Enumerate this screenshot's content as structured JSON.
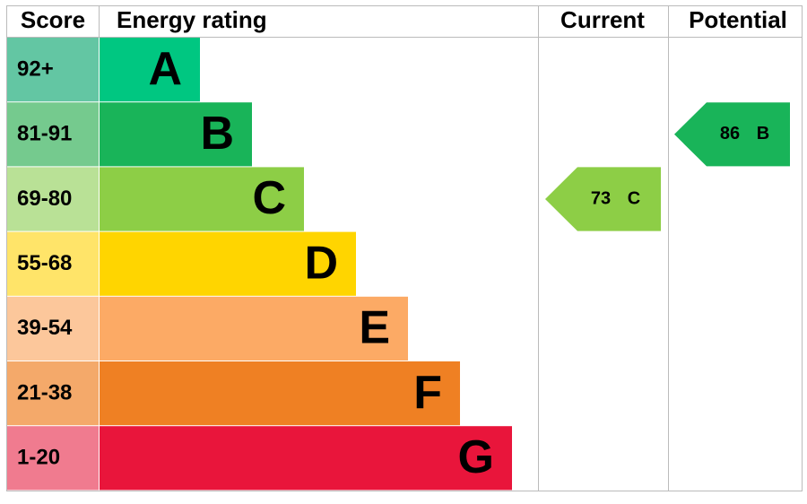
{
  "chart_data": {
    "type": "epc",
    "headers": {
      "score": "Score",
      "rating": "Energy rating",
      "current": "Current",
      "potential": "Potential"
    },
    "bands": [
      {
        "score": "92+",
        "letter": "A",
        "color": "#00c781",
        "score_color": "#63c6a3"
      },
      {
        "score": "81-91",
        "letter": "B",
        "color": "#19b459",
        "score_color": "#75ca8e"
      },
      {
        "score": "69-80",
        "letter": "C",
        "color": "#8dce46",
        "score_color": "#b9e196"
      },
      {
        "score": "55-68",
        "letter": "D",
        "color": "#ffd500",
        "score_color": "#ffe469"
      },
      {
        "score": "39-54",
        "letter": "E",
        "color": "#fcaa65",
        "score_color": "#fcc79b"
      },
      {
        "score": "21-38",
        "letter": "F",
        "color": "#ef8023",
        "score_color": "#f4a96a"
      },
      {
        "score": "1-20",
        "letter": "G",
        "color": "#e9153b",
        "score_color": "#f07b8f"
      }
    ],
    "current": {
      "value": 73,
      "letter": "C"
    },
    "potential": {
      "value": 86,
      "letter": "B"
    }
  }
}
